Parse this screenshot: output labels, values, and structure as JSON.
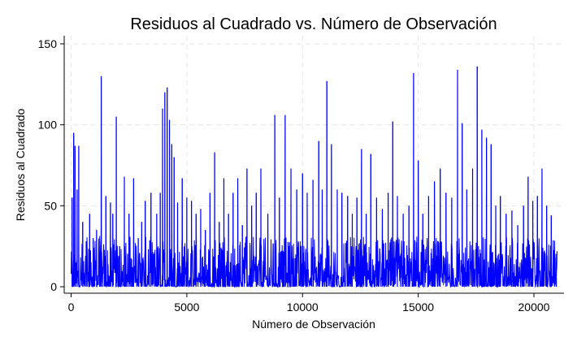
{
  "chart_data": {
    "type": "line",
    "title": "Residuos al Cuadrado vs. Número de Observación",
    "xlabel": "Número de Observación",
    "ylabel": "Residuos al Cuadrado",
    "xlim": [
      -300,
      21300
    ],
    "ylim": [
      -4,
      155
    ],
    "x_ticks": [
      0,
      5000,
      10000,
      15000,
      20000
    ],
    "y_ticks": [
      0,
      50,
      100,
      150
    ],
    "grid": true,
    "line_color": "#0000ff",
    "n_observations": 21000,
    "baseline_noise_max": 14,
    "peaks": [
      {
        "x": 40,
        "y": 55
      },
      {
        "x": 110,
        "y": 95
      },
      {
        "x": 170,
        "y": 87
      },
      {
        "x": 260,
        "y": 60
      },
      {
        "x": 330,
        "y": 87
      },
      {
        "x": 500,
        "y": 40
      },
      {
        "x": 650,
        "y": 28
      },
      {
        "x": 800,
        "y": 45
      },
      {
        "x": 950,
        "y": 30
      },
      {
        "x": 1100,
        "y": 35
      },
      {
        "x": 1300,
        "y": 130
      },
      {
        "x": 1500,
        "y": 56
      },
      {
        "x": 1700,
        "y": 52
      },
      {
        "x": 1800,
        "y": 45
      },
      {
        "x": 1950,
        "y": 105
      },
      {
        "x": 2100,
        "y": 25
      },
      {
        "x": 2300,
        "y": 68
      },
      {
        "x": 2500,
        "y": 45
      },
      {
        "x": 2700,
        "y": 67
      },
      {
        "x": 2900,
        "y": 30
      },
      {
        "x": 3050,
        "y": 40
      },
      {
        "x": 3200,
        "y": 53
      },
      {
        "x": 3450,
        "y": 58
      },
      {
        "x": 3700,
        "y": 45
      },
      {
        "x": 3850,
        "y": 58
      },
      {
        "x": 3950,
        "y": 110
      },
      {
        "x": 4050,
        "y": 120
      },
      {
        "x": 4150,
        "y": 123
      },
      {
        "x": 4250,
        "y": 103
      },
      {
        "x": 4350,
        "y": 88
      },
      {
        "x": 4450,
        "y": 80
      },
      {
        "x": 4600,
        "y": 52
      },
      {
        "x": 4800,
        "y": 67
      },
      {
        "x": 5000,
        "y": 55
      },
      {
        "x": 5200,
        "y": 53
      },
      {
        "x": 5400,
        "y": 45
      },
      {
        "x": 5600,
        "y": 48
      },
      {
        "x": 5800,
        "y": 35
      },
      {
        "x": 6000,
        "y": 58
      },
      {
        "x": 6200,
        "y": 83
      },
      {
        "x": 6400,
        "y": 40
      },
      {
        "x": 6600,
        "y": 67
      },
      {
        "x": 6800,
        "y": 45
      },
      {
        "x": 7000,
        "y": 58
      },
      {
        "x": 7200,
        "y": 67
      },
      {
        "x": 7400,
        "y": 38
      },
      {
        "x": 7600,
        "y": 73
      },
      {
        "x": 7800,
        "y": 50
      },
      {
        "x": 8000,
        "y": 58
      },
      {
        "x": 8200,
        "y": 73
      },
      {
        "x": 8500,
        "y": 45
      },
      {
        "x": 8800,
        "y": 106
      },
      {
        "x": 9000,
        "y": 55
      },
      {
        "x": 9250,
        "y": 106
      },
      {
        "x": 9500,
        "y": 73
      },
      {
        "x": 9750,
        "y": 60
      },
      {
        "x": 10000,
        "y": 70
      },
      {
        "x": 10200,
        "y": 58
      },
      {
        "x": 10450,
        "y": 66
      },
      {
        "x": 10700,
        "y": 90
      },
      {
        "x": 10850,
        "y": 60
      },
      {
        "x": 11050,
        "y": 127
      },
      {
        "x": 11250,
        "y": 88
      },
      {
        "x": 11500,
        "y": 60
      },
      {
        "x": 11700,
        "y": 58
      },
      {
        "x": 11950,
        "y": 56
      },
      {
        "x": 12150,
        "y": 45
      },
      {
        "x": 12350,
        "y": 55
      },
      {
        "x": 12550,
        "y": 85
      },
      {
        "x": 12750,
        "y": 45
      },
      {
        "x": 12950,
        "y": 82
      },
      {
        "x": 13200,
        "y": 55
      },
      {
        "x": 13450,
        "y": 48
      },
      {
        "x": 13700,
        "y": 58
      },
      {
        "x": 13900,
        "y": 102
      },
      {
        "x": 14100,
        "y": 56
      },
      {
        "x": 14350,
        "y": 45
      },
      {
        "x": 14600,
        "y": 50
      },
      {
        "x": 14800,
        "y": 132
      },
      {
        "x": 15000,
        "y": 78
      },
      {
        "x": 15200,
        "y": 45
      },
      {
        "x": 15450,
        "y": 56
      },
      {
        "x": 15700,
        "y": 65
      },
      {
        "x": 15950,
        "y": 73
      },
      {
        "x": 16200,
        "y": 58
      },
      {
        "x": 16450,
        "y": 55
      },
      {
        "x": 16700,
        "y": 134
      },
      {
        "x": 16900,
        "y": 101
      },
      {
        "x": 17100,
        "y": 60
      },
      {
        "x": 17350,
        "y": 73
      },
      {
        "x": 17550,
        "y": 136
      },
      {
        "x": 17750,
        "y": 97
      },
      {
        "x": 17950,
        "y": 92
      },
      {
        "x": 18150,
        "y": 88
      },
      {
        "x": 18350,
        "y": 50
      },
      {
        "x": 18550,
        "y": 56
      },
      {
        "x": 18800,
        "y": 45
      },
      {
        "x": 19050,
        "y": 47
      },
      {
        "x": 19300,
        "y": 38
      },
      {
        "x": 19550,
        "y": 50
      },
      {
        "x": 19750,
        "y": 68
      },
      {
        "x": 19950,
        "y": 53
      },
      {
        "x": 20150,
        "y": 56
      },
      {
        "x": 20350,
        "y": 73
      },
      {
        "x": 20550,
        "y": 50
      },
      {
        "x": 20750,
        "y": 44
      },
      {
        "x": 20900,
        "y": 18
      },
      {
        "x": 20970,
        "y": 5
      }
    ]
  }
}
